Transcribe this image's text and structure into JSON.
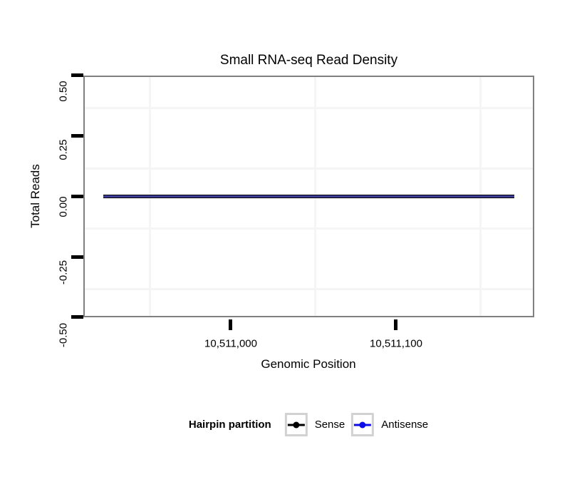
{
  "title": "Small RNA-seq Read Density",
  "axes": {
    "y": {
      "label": "Total Reads",
      "tick_labels": [
        "0.50",
        "0.25",
        "0.00",
        "-0.25",
        "-0.50"
      ]
    },
    "x": {
      "label": "Genomic Position",
      "tick_labels": [
        "10,511,000",
        "10,511,100"
      ]
    }
  },
  "legend": {
    "title": "Hairpin partition",
    "items": [
      {
        "label": "Sense",
        "color": "#000000"
      },
      {
        "label": "Antisense",
        "color": "#0d0dea"
      }
    ]
  },
  "colors": {
    "sense": "#000000",
    "antisense": "#0d0dea",
    "overlap_line": "#3c3c96",
    "panel_border": "#808080",
    "grid": "#f5f5f5",
    "tick": "#000000",
    "legend_key_border": "#d2d2d2"
  },
  "chart_data": {
    "type": "line",
    "title": "Small RNA-seq Read Density",
    "xlabel": "Genomic Position",
    "ylabel": "Total Reads",
    "xlim": [
      10510910,
      10511183
    ],
    "ylim": [
      -0.5,
      0.5
    ],
    "x_ticks": [
      10511000,
      10511100
    ],
    "x_tick_labels": [
      "10,511,000",
      "10,511,100"
    ],
    "y_ticks": [
      0.5,
      0.25,
      0.0,
      -0.25,
      -0.5
    ],
    "y_tick_labels": [
      "0.50",
      "0.25",
      "0.00",
      "-0.25",
      "-0.50"
    ],
    "grid": "minor gridlines only, offset midway between ticks",
    "legend_position": "bottom",
    "legend_title": "Hairpin partition",
    "series": [
      {
        "name": "Sense",
        "color": "#000000",
        "x_start": 10510922,
        "x_end": 10511171,
        "y_constant": 0
      },
      {
        "name": "Antisense",
        "color": "#0d0dea",
        "x_start": 10510922,
        "x_end": 10511171,
        "y_constant": 0
      }
    ],
    "note": "Both series are flat at y=0 over the hairpin region; they overlap and render as a single dark navy horizontal line."
  }
}
